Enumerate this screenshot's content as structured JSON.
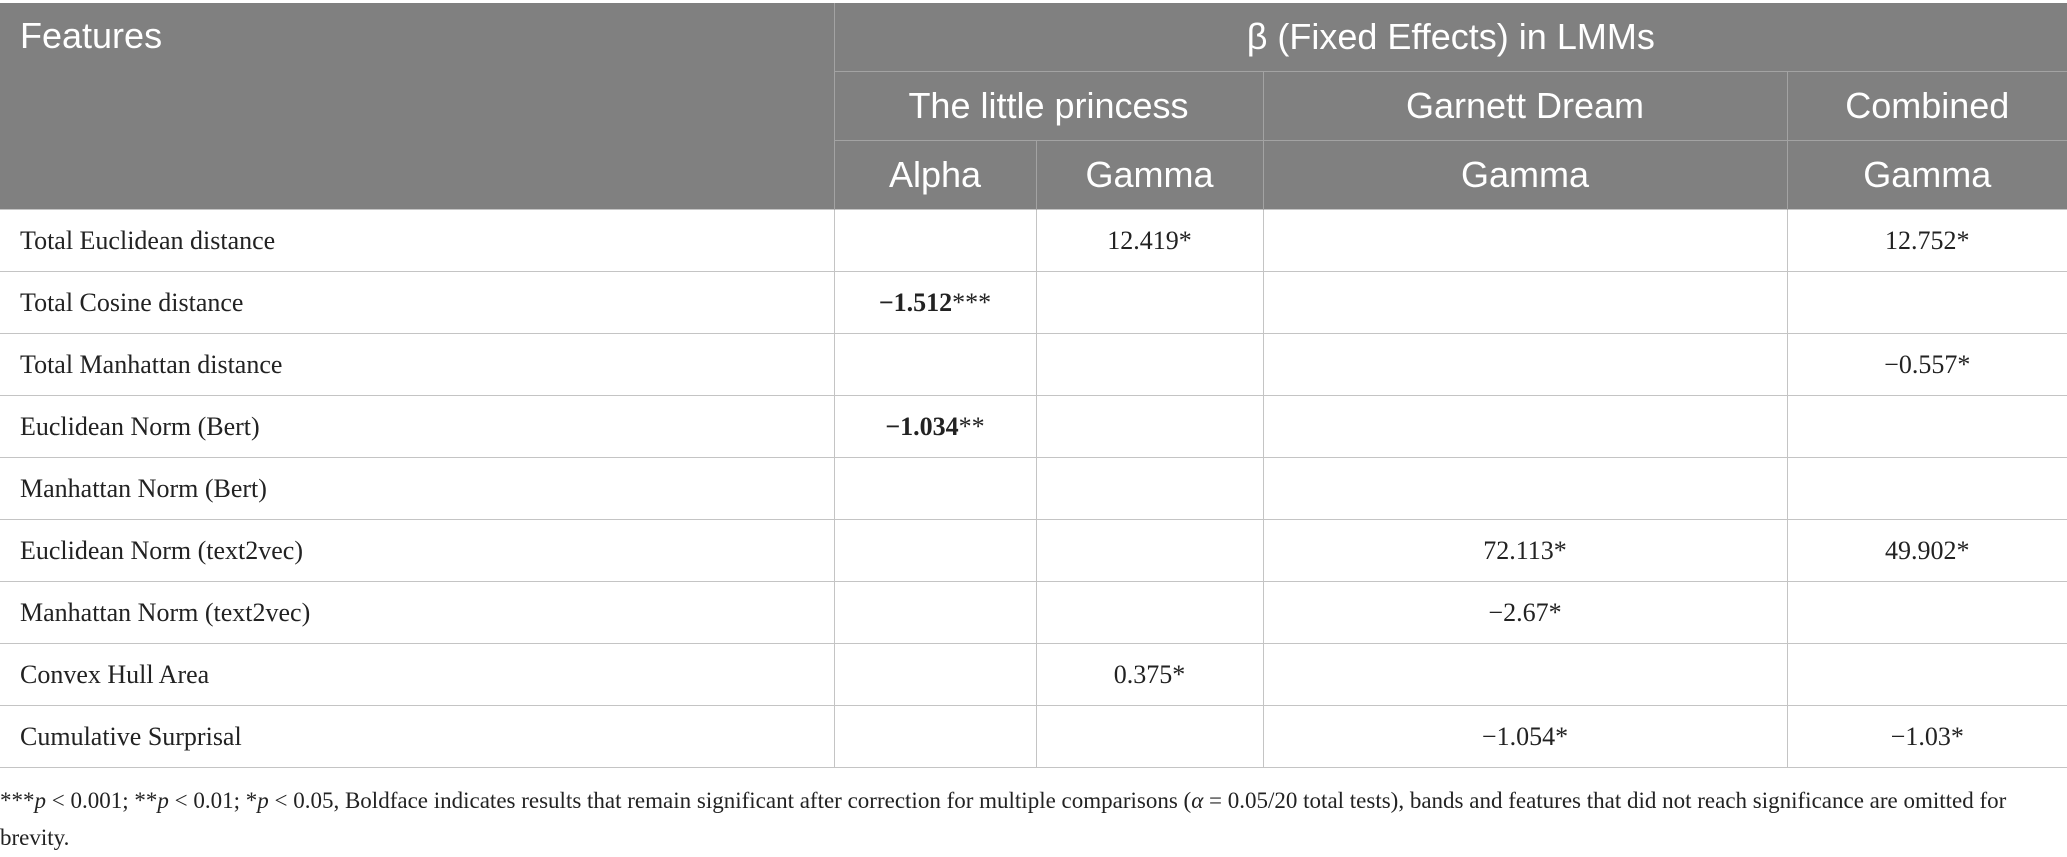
{
  "table": {
    "header": {
      "features": "Features",
      "group_title": "β (Fixed Effects) in LMMs",
      "groups": [
        "The little princess",
        "Garnett Dream",
        "Combined"
      ],
      "subcolumns": [
        "Alpha",
        "Gamma",
        "Gamma",
        "Gamma"
      ]
    },
    "rows": [
      {
        "feature": "Total Euclidean distance",
        "cells": [
          {
            "num": "",
            "stars": ""
          },
          {
            "num": "12.419",
            "stars": "*"
          },
          {
            "num": "",
            "stars": ""
          },
          {
            "num": "12.752",
            "stars": "*"
          }
        ]
      },
      {
        "feature": "Total Cosine distance",
        "cells": [
          {
            "num": "−1.512",
            "stars": "***",
            "bold": true
          },
          {
            "num": "",
            "stars": ""
          },
          {
            "num": "",
            "stars": ""
          },
          {
            "num": "",
            "stars": ""
          }
        ]
      },
      {
        "feature": "Total Manhattan distance",
        "cells": [
          {
            "num": "",
            "stars": ""
          },
          {
            "num": "",
            "stars": ""
          },
          {
            "num": "",
            "stars": ""
          },
          {
            "num": "−0.557",
            "stars": "*"
          }
        ]
      },
      {
        "feature": "Euclidean Norm (Bert)",
        "cells": [
          {
            "num": "−1.034",
            "stars": "**",
            "bold": true
          },
          {
            "num": "",
            "stars": ""
          },
          {
            "num": "",
            "stars": ""
          },
          {
            "num": "",
            "stars": ""
          }
        ]
      },
      {
        "feature": "Manhattan Norm (Bert)",
        "cells": [
          {
            "num": "",
            "stars": ""
          },
          {
            "num": "",
            "stars": ""
          },
          {
            "num": "",
            "stars": ""
          },
          {
            "num": "",
            "stars": ""
          }
        ]
      },
      {
        "feature": "Euclidean Norm (text2vec)",
        "cells": [
          {
            "num": "",
            "stars": ""
          },
          {
            "num": "",
            "stars": ""
          },
          {
            "num": "72.113",
            "stars": "*"
          },
          {
            "num": "49.902",
            "stars": "*"
          }
        ]
      },
      {
        "feature": "Manhattan Norm (text2vec)",
        "cells": [
          {
            "num": "",
            "stars": ""
          },
          {
            "num": "",
            "stars": ""
          },
          {
            "num": "−2.67",
            "stars": "*"
          },
          {
            "num": "",
            "stars": ""
          }
        ]
      },
      {
        "feature": "Convex Hull Area",
        "cells": [
          {
            "num": "",
            "stars": ""
          },
          {
            "num": "0.375",
            "stars": "*"
          },
          {
            "num": "",
            "stars": ""
          },
          {
            "num": "",
            "stars": ""
          }
        ]
      },
      {
        "feature": "Cumulative Surprisal",
        "cells": [
          {
            "num": "",
            "stars": ""
          },
          {
            "num": "",
            "stars": ""
          },
          {
            "num": "−1.054",
            "stars": "*"
          },
          {
            "num": "−1.03",
            "stars": "*"
          }
        ]
      }
    ]
  },
  "footnote": {
    "s3": "***",
    "p1": "p",
    "t1": " < 0.001; **",
    "p2": "p",
    "t2": " < 0.01; *",
    "p3": "p",
    "t3": " < 0.05, Boldface indicates results that remain significant after correction for multiple comparisons (",
    "alpha": "α",
    "t4": " = 0.05/20 total tests), bands and features that did not reach significance are omitted for brevity."
  }
}
